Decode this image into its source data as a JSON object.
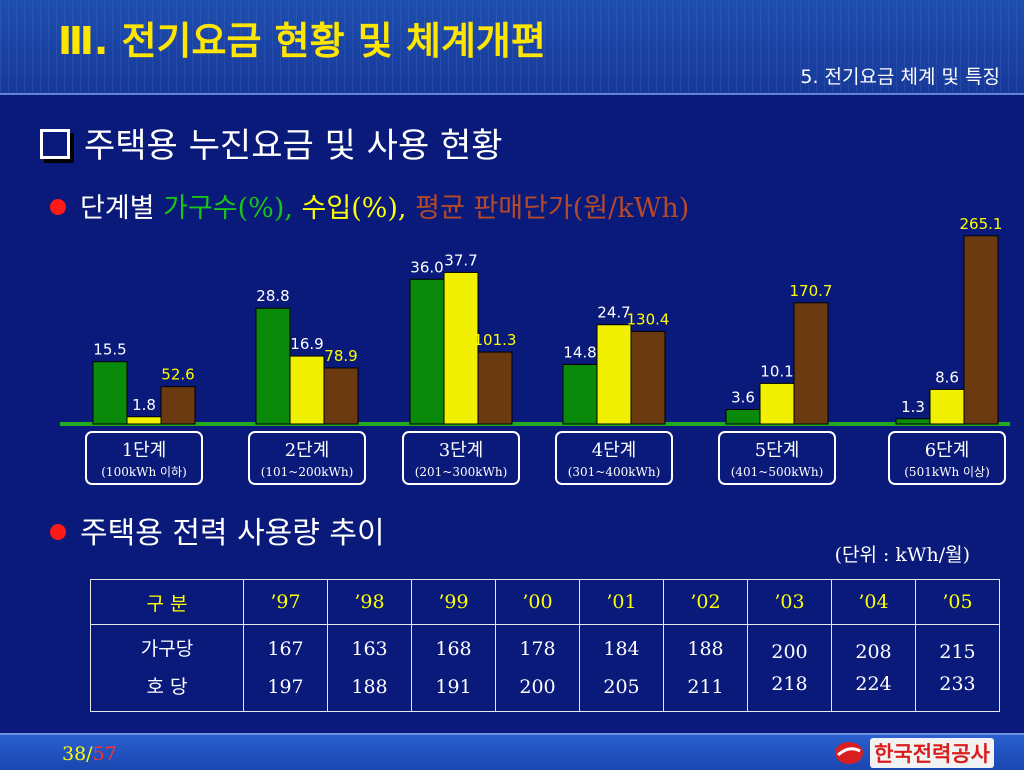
{
  "header": {
    "title": "Ⅲ. 전기요금 현황 및 체계개편",
    "subtitle": "5. 전기요금 체계 및 특징"
  },
  "section1": {
    "title": "주택용 누진요금 및 사용 현황",
    "subhead": {
      "prefix": "단계별 ",
      "households": "가구수(%),",
      "revenue": "수입(%),",
      "price": "평균 판매단가(원/kWh)"
    }
  },
  "colors": {
    "households": "#0a8a0a",
    "revenue": "#f0f000",
    "price": "#6b3a10",
    "label_households": "#ffffff",
    "label_revenue": "#ffffff",
    "label_price": "#ffff00",
    "baseline": "#22aa22"
  },
  "chart_data": {
    "type": "bar",
    "categories": [
      "1단계",
      "2단계",
      "3단계",
      "4단계",
      "5단계",
      "6단계"
    ],
    "category_ranges": [
      "(100kWh 이하)",
      "(101~200kWh)",
      "(201~300kWh)",
      "(301~400kWh)",
      "(401~500kWh)",
      "(501kWh 이상)"
    ],
    "series": [
      {
        "name": "가구수(%)",
        "values": [
          15.5,
          28.8,
          36.0,
          14.8,
          3.6,
          1.3
        ]
      },
      {
        "name": "수입(%)",
        "values": [
          1.8,
          16.9,
          37.7,
          24.7,
          10.1,
          8.6
        ]
      },
      {
        "name": "평균 판매단가(원/kWh)",
        "values": [
          52.6,
          78.9,
          101.3,
          130.4,
          170.7,
          265.1
        ]
      }
    ],
    "labels": [
      [
        "15.5",
        "1.8",
        "52.6"
      ],
      [
        "28.8",
        "16.9",
        "78.9"
      ],
      [
        "36.0",
        "37.7",
        "101.3"
      ],
      [
        "14.8",
        "24.7",
        "130.4"
      ],
      [
        "3.6",
        "10.1",
        "170.7"
      ],
      [
        "1.3",
        "8.6",
        "265.1"
      ]
    ]
  },
  "section2": {
    "title": "주택용 전력 사용량 추이",
    "unit": "(단위 : kWh/월)"
  },
  "table": {
    "header": [
      "구    분",
      "’97",
      "’98",
      "’99",
      "’00",
      "’01",
      "’02",
      "’03",
      "’04",
      "’05"
    ],
    "row_labels": [
      "가구당",
      "호    당"
    ],
    "values": [
      [
        "167",
        "197"
      ],
      [
        "163",
        "188"
      ],
      [
        "168",
        "191"
      ],
      [
        "178",
        "200"
      ],
      [
        "184",
        "205"
      ],
      [
        "188",
        "211"
      ],
      [
        "200",
        "218"
      ],
      [
        "208",
        "224"
      ],
      [
        "215",
        "233"
      ]
    ]
  },
  "footer": {
    "page_current": "38/",
    "page_total": "57",
    "logo_text": "한국전력공사"
  }
}
